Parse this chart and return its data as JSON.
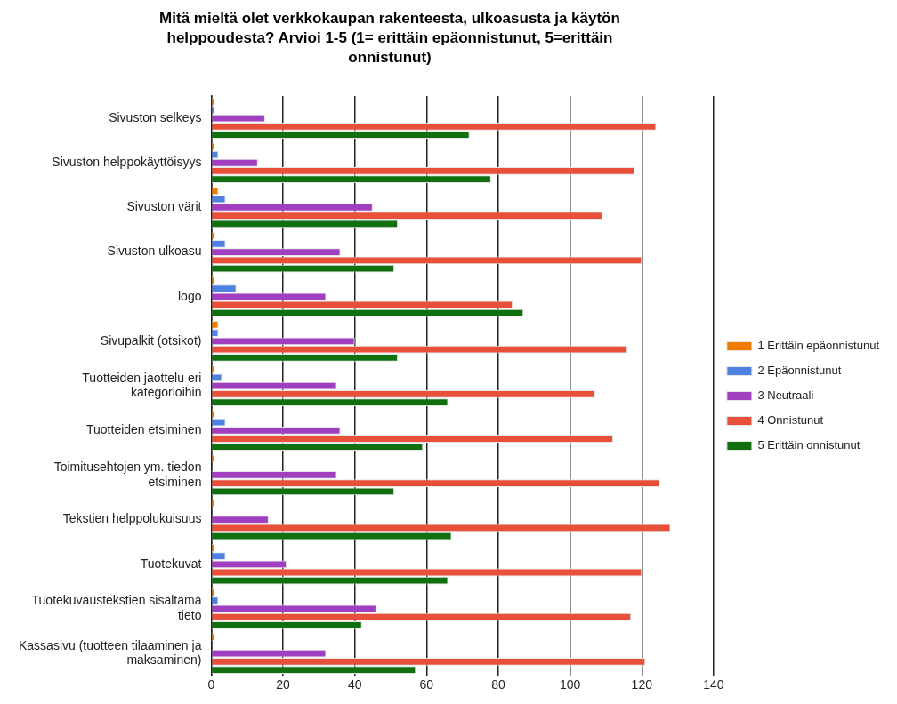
{
  "chart_data": {
    "type": "bar",
    "orientation": "horizontal",
    "title": "Mitä mieltä olet verkkokaupan rakenteesta, ulkoasusta ja käytön helppoudesta? Arvioi 1-5 (1= erittäin epäonnistunut, 5=erittäin onnistunut)",
    "categories": [
      "Sivuston selkeys",
      "Sivuston helppokäyttöisyys",
      "Sivuston värit",
      "Sivuston ulkoasu",
      "logo",
      "Sivupalkit (otsikot)",
      "Tuotteiden jaottelu eri kategorioihin",
      "Tuotteiden etsiminen",
      "Toimitusehtojen ym. tiedon etsiminen",
      "Tekstien helppolukuisuus",
      "Tuotekuvat",
      "Tuotekuvaustekstien sisältämä tieto",
      "Kassasivu (tuotteen tilaaminen ja maksaminen)"
    ],
    "series": [
      {
        "name": "1 Erittäin epäonnistunut",
        "color": "#f07d00",
        "values": [
          1,
          1,
          2,
          1,
          1,
          2,
          1,
          1,
          1,
          1,
          1,
          1,
          1
        ]
      },
      {
        "name": "2 Epäonnistunut",
        "color": "#4f81e0",
        "values": [
          1,
          2,
          4,
          4,
          7,
          2,
          3,
          4,
          0,
          0,
          4,
          2,
          0
        ]
      },
      {
        "name": "3 Neutraali",
        "color": "#a040c0",
        "values": [
          15,
          13,
          45,
          36,
          32,
          40,
          35,
          36,
          35,
          16,
          21,
          46,
          32
        ]
      },
      {
        "name": "4 Onnistunut",
        "color": "#e8503a",
        "values": [
          124,
          118,
          109,
          120,
          84,
          116,
          107,
          112,
          125,
          128,
          120,
          117,
          121
        ]
      },
      {
        "name": "5 Erittäin onnistunut",
        "color": "#107010",
        "values": [
          72,
          78,
          52,
          51,
          87,
          52,
          66,
          59,
          51,
          67,
          66,
          42,
          57
        ]
      }
    ],
    "xlim": [
      0,
      140
    ],
    "xticks": [
      0,
      20,
      40,
      60,
      80,
      100,
      120,
      140
    ],
    "grid": "x",
    "legend": "right"
  }
}
